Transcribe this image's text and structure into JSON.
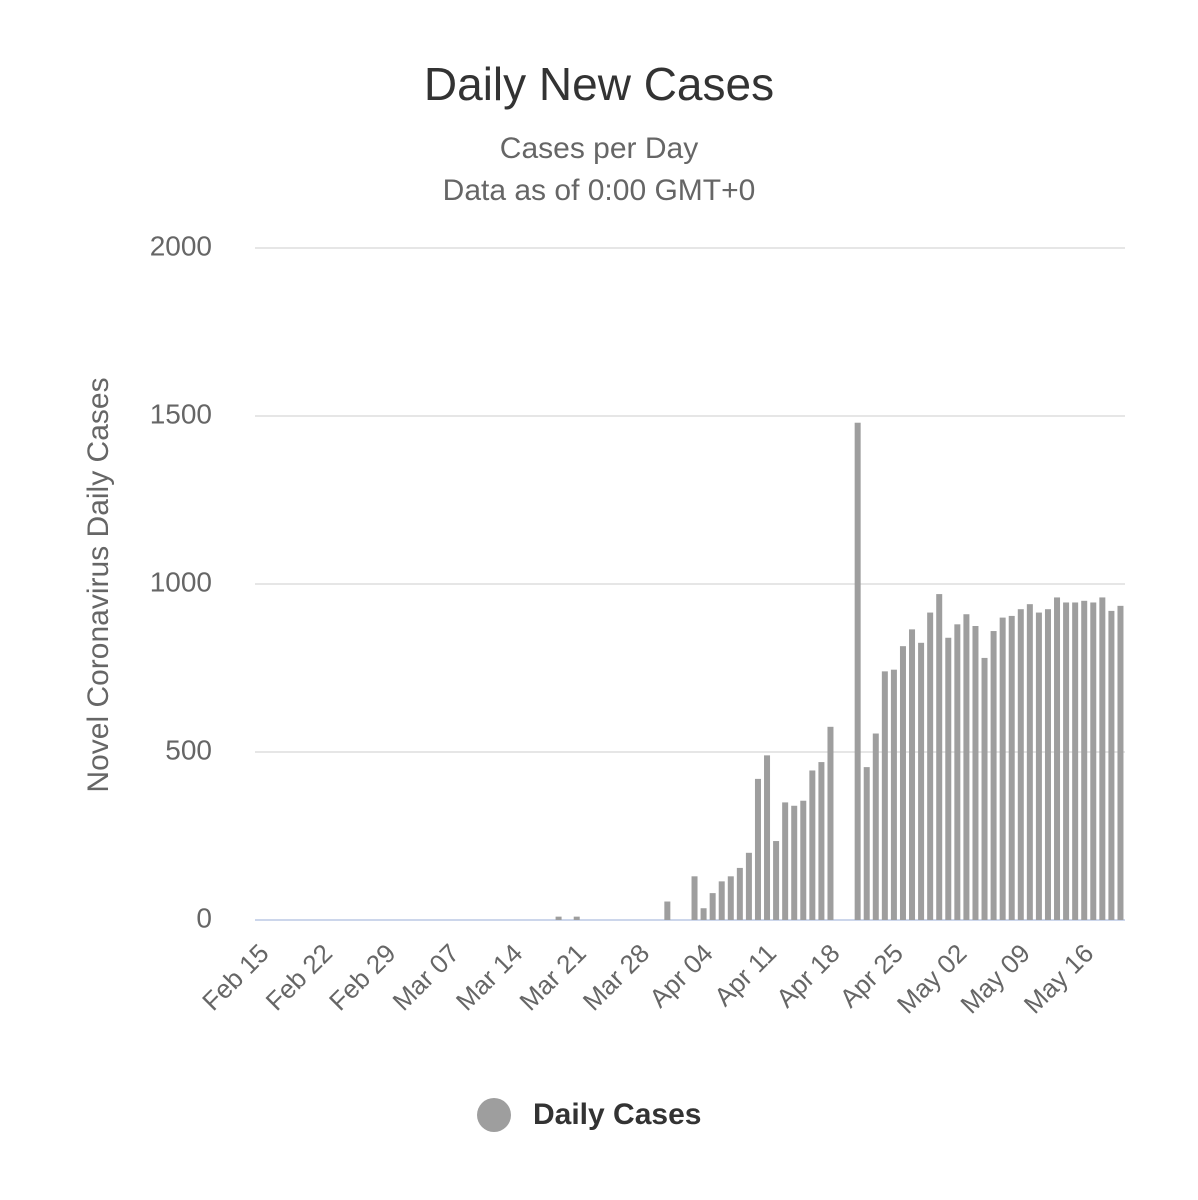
{
  "chart_data": {
    "type": "bar",
    "title": "Daily New Cases",
    "subtitle": [
      "Cases per Day",
      "Data as of 0:00 GMT+0"
    ],
    "y_label": "Novel Coronavirus Daily Cases",
    "categories": [
      "Feb 15",
      null,
      null,
      null,
      null,
      null,
      null,
      "Feb 22",
      null,
      null,
      null,
      null,
      null,
      null,
      "Feb 29",
      null,
      null,
      null,
      null,
      null,
      null,
      "Mar 07",
      null,
      null,
      null,
      null,
      null,
      null,
      "Mar 14",
      null,
      null,
      null,
      null,
      null,
      null,
      "Mar 21",
      null,
      null,
      null,
      null,
      null,
      null,
      "Mar 28",
      null,
      null,
      null,
      null,
      null,
      null,
      "Apr 04",
      null,
      null,
      null,
      null,
      null,
      null,
      "Apr 11",
      null,
      null,
      null,
      null,
      null,
      null,
      "Apr 18",
      null,
      null,
      null,
      null,
      null,
      null,
      "Apr 25",
      null,
      null,
      null,
      null,
      null,
      null,
      "May 02",
      null,
      null,
      null,
      null,
      null,
      null,
      "May 09",
      null,
      null,
      null,
      null,
      null,
      null,
      "May 16",
      null,
      null,
      null,
      null
    ],
    "series": [
      {
        "name": "Daily Cases",
        "color": "#9e9e9e",
        "values": [
          0,
          0,
          0,
          0,
          0,
          0,
          0,
          0,
          0,
          0,
          0,
          0,
          0,
          0,
          0,
          0,
          0,
          0,
          0,
          0,
          0,
          0,
          0,
          0,
          0,
          0,
          0,
          0,
          0,
          0,
          0,
          0,
          0,
          10,
          0,
          10,
          0,
          0,
          0,
          0,
          0,
          0,
          0,
          0,
          0,
          55,
          0,
          0,
          130,
          35,
          80,
          115,
          130,
          155,
          200,
          420,
          490,
          235,
          350,
          340,
          355,
          445,
          470,
          575,
          0,
          0,
          1480,
          455,
          555,
          740,
          745,
          815,
          865,
          825,
          915,
          970,
          840,
          880,
          910,
          875,
          780,
          860,
          900,
          905,
          925,
          940,
          915,
          925,
          960,
          945,
          945,
          950,
          945,
          960,
          920,
          935
        ]
      }
    ],
    "ylim": [
      0,
      2000
    ],
    "yticks": [
      0,
      500,
      1000,
      1500,
      2000
    ],
    "grid": true
  }
}
